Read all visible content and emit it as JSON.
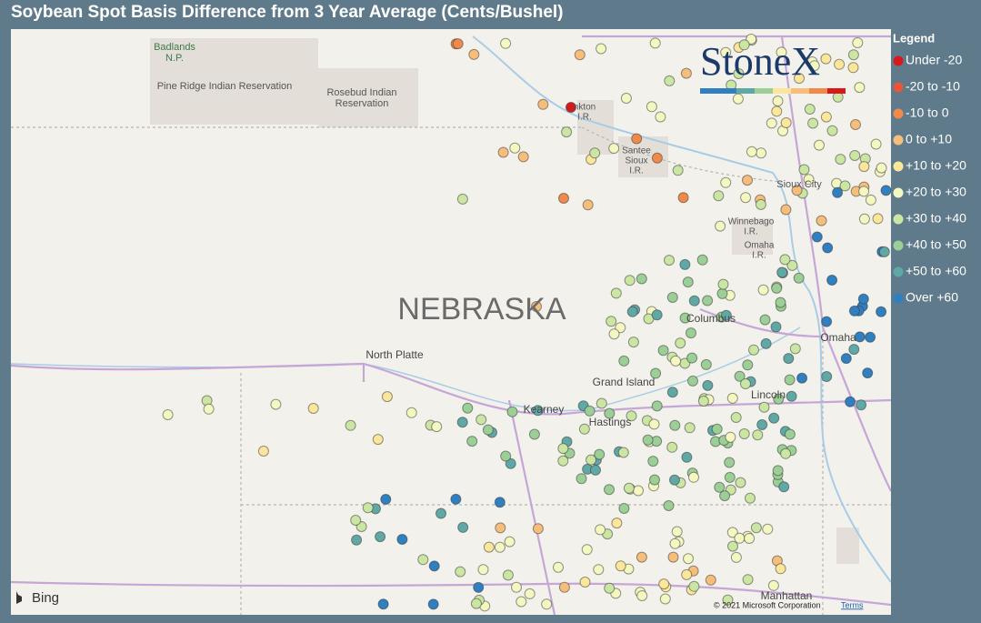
{
  "title": "Soybean Spot Basis Difference from 3 Year Average (Cents/Bushel)",
  "legend": {
    "title": "Legend",
    "items": [
      {
        "label": "Under -20",
        "color": "#d7191c"
      },
      {
        "label": "-20 to -10",
        "color": "#e8553a"
      },
      {
        "label": "-10 to 0",
        "color": "#f08a4b"
      },
      {
        "label": "0 to +10",
        "color": "#f7bd7a"
      },
      {
        "label": "+10 to +20",
        "color": "#fbe69a"
      },
      {
        "label": "+20 to +30",
        "color": "#f4f8c0"
      },
      {
        "label": "+30 to +40",
        "color": "#cbe6a3"
      },
      {
        "label": "+40 to +50",
        "color": "#9bcf95"
      },
      {
        "label": "+50 to +60",
        "color": "#5fa8a6"
      },
      {
        "label": "Over +60",
        "color": "#2f7fc1"
      }
    ]
  },
  "logo": "StoneX",
  "map_labels": [
    {
      "lines": [
        "Badlands",
        "N.P."
      ]
    },
    {
      "lines": [
        "Pine Ridge Indian Reservation"
      ]
    },
    {
      "lines": [
        "Rosebud Indian",
        "Reservation"
      ]
    },
    {
      "lines": [
        "nkton",
        "I.R."
      ]
    },
    {
      "lines": [
        "Santee",
        "Sioux",
        "I.R."
      ]
    },
    {
      "lines": [
        "Sioux City"
      ]
    },
    {
      "lines": [
        "Winnebago",
        "I.R."
      ]
    },
    {
      "lines": [
        "Omaha",
        "I.R."
      ]
    },
    {
      "lines": [
        "NEBRASKA"
      ]
    },
    {
      "lines": [
        "North Platte"
      ]
    },
    {
      "lines": [
        "Columbus"
      ]
    },
    {
      "lines": [
        "Omaha"
      ]
    },
    {
      "lines": [
        "Grand Island"
      ]
    },
    {
      "lines": [
        "Kearney"
      ]
    },
    {
      "lines": [
        "Hastings"
      ]
    },
    {
      "lines": [
        "Lincoln"
      ]
    },
    {
      "lines": [
        "Manhattan"
      ]
    }
  ],
  "attribution": {
    "provider": "Bing",
    "copyright": "© 2021 Microsoft Corporation",
    "terms": "Terms"
  }
}
